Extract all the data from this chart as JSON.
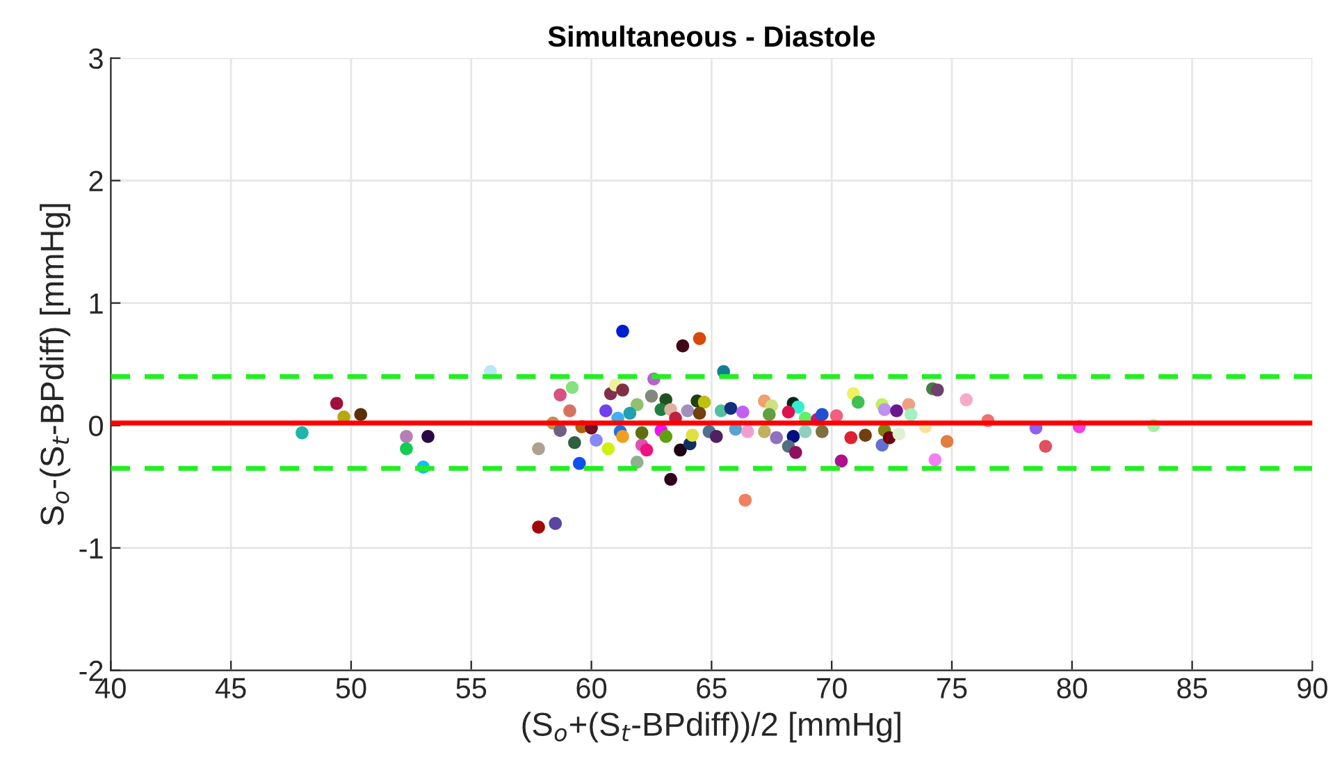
{
  "chart_data": {
    "type": "scatter",
    "title": "Simultaneous - Diastole",
    "xlabel": "(S$_{o}$+(S$_{t}$-BPdiff))/2 [mmHg]",
    "ylabel": "S$_{o}$-(S$_{t}$-BPdiff) [mmHg]",
    "xlim": [
      40,
      90
    ],
    "xticks": [
      40,
      45,
      50,
      55,
      60,
      65,
      70,
      75,
      80,
      85,
      90
    ],
    "ylim": [
      -2,
      3
    ],
    "yticks": [
      -2,
      -1,
      0,
      1,
      2,
      3
    ],
    "grid": true,
    "marker": "circle",
    "legend": false,
    "x": [
      47.96,
      49.4,
      49.7,
      50.4,
      52.3,
      52.3,
      53.2,
      53.0,
      55.8,
      57.8,
      57.8,
      58.5,
      58.7,
      59.2,
      59.1,
      58.4,
      58.7,
      59.3,
      59.5,
      60.2,
      60.7,
      59.6,
      60.0,
      60.6,
      60.8,
      61.3,
      63.8,
      64.5,
      65.5,
      62.6,
      61.0,
      61.3,
      62.5,
      63.1,
      61.9,
      64.4,
      64.7,
      61.6,
      61.1,
      62.9,
      63.3,
      64.0,
      64.5,
      63.5,
      65.4,
      65.8,
      66.3,
      67.2,
      67.5,
      68.4,
      68.6,
      68.2,
      67.4,
      68.9,
      69.4,
      69.6,
      70.2,
      70.9,
      71.1,
      72.1,
      72.2,
      72.7,
      73.2,
      73.3,
      74.2,
      74.4,
      61.2,
      61.3,
      62.1,
      62.3,
      62.1,
      61.9,
      63.7,
      64.1,
      64.2,
      62.9,
      63.1,
      63.3,
      64.9,
      65.2,
      66.0,
      66.5,
      66.4,
      67.2,
      67.7,
      68.4,
      68.2,
      68.5,
      68.9,
      69.6,
      70.8,
      71.4,
      70.4,
      72.1,
      72.2,
      72.4,
      72.8,
      73.9,
      74.3,
      75.6,
      76.5,
      74.8,
      78.5,
      78.9,
      80.3,
      83.4
    ],
    "values": [
      -0.06,
      0.18,
      0.07,
      0.09,
      -0.09,
      -0.19,
      -0.09,
      -0.34,
      0.44,
      -0.19,
      -0.83,
      -0.8,
      0.25,
      0.31,
      0.12,
      0.02,
      -0.04,
      -0.14,
      -0.31,
      -0.12,
      -0.19,
      -0.01,
      -0.02,
      0.12,
      0.26,
      0.77,
      0.65,
      0.71,
      0.44,
      0.38,
      0.33,
      0.29,
      0.24,
      0.21,
      0.17,
      0.2,
      0.19,
      0.1,
      0.06,
      0.13,
      0.13,
      0.12,
      0.1,
      0.06,
      0.12,
      0.14,
      0.11,
      0.2,
      0.16,
      0.18,
      0.15,
      0.11,
      0.09,
      0.06,
      0.05,
      0.09,
      0.08,
      0.26,
      0.19,
      0.17,
      0.13,
      0.12,
      0.17,
      0.09,
      0.3,
      0.29,
      -0.05,
      -0.09,
      -0.16,
      -0.2,
      -0.06,
      -0.3,
      -0.2,
      -0.15,
      -0.08,
      -0.04,
      -0.09,
      -0.44,
      -0.05,
      -0.09,
      -0.03,
      -0.05,
      -0.61,
      -0.05,
      -0.1,
      -0.09,
      -0.17,
      -0.22,
      -0.05,
      -0.05,
      -0.1,
      -0.08,
      -0.29,
      -0.16,
      -0.04,
      -0.1,
      -0.07,
      -0.01,
      -0.28,
      0.21,
      0.04,
      -0.13,
      -0.02,
      -0.17,
      -0.01,
      0.0
    ],
    "colors": [
      "#1fb5a8",
      "#a0103c",
      "#b5a810",
      "#5a2f0a",
      "#b57fb5",
      "#10cc50",
      "#2a0a45",
      "#10c0f5",
      "#b8e8f8",
      "#b0a090",
      "#a00808",
      "#5a45a0",
      "#d85080",
      "#88e080",
      "#d87060",
      "#c09050",
      "#706080",
      "#306040",
      "#1050f0",
      "#8888f8",
      "#d0f010",
      "#b06010",
      "#701020",
      "#7040f0",
      "#803050",
      "#0020d0",
      "#400818",
      "#d84808",
      "#108090",
      "#b860d0",
      "#f0f0a0",
      "#803040",
      "#808880",
      "#205020",
      "#90c070",
      "#204010",
      "#c0c010",
      "#20a0b0",
      "#40b0f0",
      "#208040",
      "#e0b0a0",
      "#a090c0",
      "#704010",
      "#c02040",
      "#50c0a0",
      "#103080",
      "#c060f0",
      "#f0a070",
      "#d0e080",
      "#002818",
      "#30f0d0",
      "#e01050",
      "#60a040",
      "#60f060",
      "#c01880",
      "#2050d0",
      "#f06080",
      "#f0f060",
      "#40c050",
      "#c0f060",
      "#c090f0",
      "#6a1890",
      "#f0a080",
      "#a0f0c0",
      "#408040",
      "#704070",
      "#2070e0",
      "#f0a020",
      "#e050b0",
      "#f01080",
      "#607010",
      "#90b090",
      "#200010",
      "#103060",
      "#e0e040",
      "#f010f0",
      "#60a010",
      "#300020",
      "#507090",
      "#502060",
      "#60a0d0",
      "#f0a0d0",
      "#f08060",
      "#c0b060",
      "#9070c0",
      "#001080",
      "#507080",
      "#901060",
      "#90d0c0",
      "#807040",
      "#e02030",
      "#704010",
      "#b01090",
      "#6070d0",
      "#808010",
      "#700010",
      "#e0f0d0",
      "#f8e0a0",
      "#f080f0",
      "#f8a8c8",
      "#f07070",
      "#e08040",
      "#9060f0",
      "#e05060",
      "#f040e0",
      "#a0f0a0"
    ],
    "ref_lines": [
      {
        "axis": "y",
        "value": 0.02,
        "color": "#ff0000",
        "line_style": "solid"
      },
      {
        "axis": "y",
        "value": 0.4,
        "color": "#22ee22",
        "line_style": "dashed"
      },
      {
        "axis": "y",
        "value": -0.35,
        "color": "#22ee22",
        "line_style": "dashed"
      }
    ]
  }
}
